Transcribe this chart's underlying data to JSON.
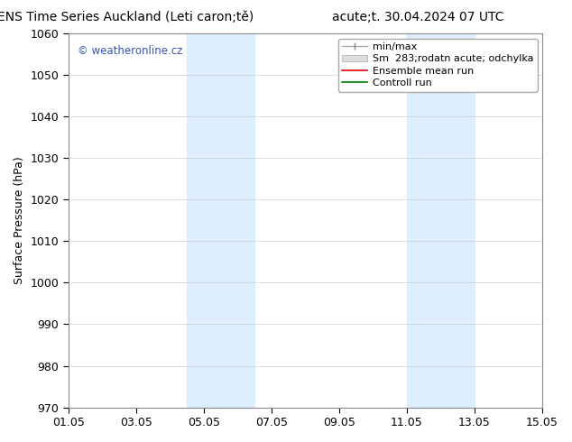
{
  "title_left": "ENS Time Series Auckland (Leti caron;tě)",
  "title_right": "acute;t. 30.04.2024 07 UTC",
  "ylabel": "Surface Pressure (hPa)",
  "ylim": [
    970,
    1060
  ],
  "yticks": [
    970,
    980,
    990,
    1000,
    1010,
    1020,
    1030,
    1040,
    1050,
    1060
  ],
  "xtick_labels": [
    "01.05",
    "03.05",
    "05.05",
    "07.05",
    "09.05",
    "11.05",
    "13.05",
    "15.05"
  ],
  "xtick_positions": [
    0,
    2,
    4,
    6,
    8,
    10,
    12,
    14
  ],
  "xlim": [
    0,
    14
  ],
  "watermark": "© weatheronline.cz",
  "watermark_color": "#3355bb",
  "bg_color": "#ffffff",
  "plot_bg_color": "#ffffff",
  "shaded_regions": [
    {
      "x_start": 3.5,
      "x_end": 5.5,
      "color": "#ddeeff"
    },
    {
      "x_start": 10.0,
      "x_end": 12.0,
      "color": "#ddeeff"
    }
  ],
  "grid_color": "#cccccc",
  "grid_ls": "-",
  "grid_lw": 0.5,
  "tick_label_fontsize": 9,
  "axis_label_fontsize": 9,
  "title_fontsize": 10,
  "legend_fontsize": 8,
  "spine_color": "#888888",
  "spine_lw": 0.8
}
